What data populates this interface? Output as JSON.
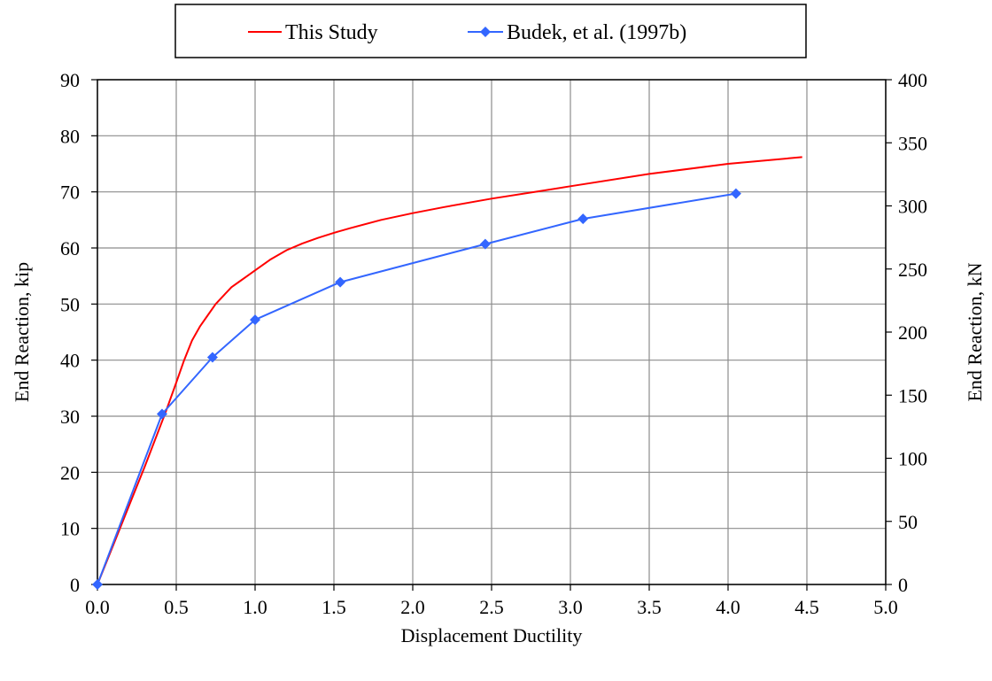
{
  "chart_data": {
    "type": "line",
    "xlabel": "Displacement Ductility",
    "ylabel": "End Reaction, kip",
    "y2label": "End Reaction, kN",
    "xlim": [
      0,
      5
    ],
    "ylim": [
      0,
      90
    ],
    "y2lim": [
      0,
      400
    ],
    "xticks": [
      "0.0",
      "0.5",
      "1.0",
      "1.5",
      "2.0",
      "2.5",
      "3.0",
      "3.5",
      "4.0",
      "4.5",
      "5.0"
    ],
    "yticks": [
      "0",
      "10",
      "20",
      "30",
      "40",
      "50",
      "60",
      "70",
      "80",
      "90"
    ],
    "y2ticks": [
      "0",
      "50",
      "100",
      "150",
      "200",
      "250",
      "300",
      "350",
      "400"
    ],
    "grid": true,
    "legend_position": "top",
    "series": [
      {
        "name": "This Study",
        "color": "#ff0000",
        "marker": "none",
        "x": [
          0,
          0.1,
          0.2,
          0.3,
          0.43,
          0.5,
          0.55,
          0.6,
          0.65,
          0.7,
          0.75,
          0.8,
          0.85,
          0.9,
          0.95,
          1.0,
          1.1,
          1.2,
          1.3,
          1.4,
          1.5,
          1.6,
          1.8,
          2.0,
          2.2,
          2.5,
          2.8,
          3.0,
          3.5,
          4.0,
          4.47
        ],
        "y": [
          0,
          7,
          14,
          21,
          30.5,
          36,
          40,
          43.5,
          46,
          48,
          50,
          51.5,
          53,
          54,
          55,
          56,
          58,
          59.6,
          60.8,
          61.8,
          62.7,
          63.5,
          65,
          66.2,
          67.3,
          68.8,
          70.1,
          71,
          73.2,
          75,
          76.2
        ]
      },
      {
        "name": "Budek, et al. (1997b)",
        "color": "#3366ff",
        "marker": "diamond",
        "x": [
          0.0,
          0.41,
          0.73,
          1.0,
          1.54,
          2.46,
          3.08,
          4.05
        ],
        "y": [
          0,
          30.4,
          40.5,
          47.2,
          53.9,
          60.7,
          65.2,
          69.7
        ]
      }
    ]
  }
}
